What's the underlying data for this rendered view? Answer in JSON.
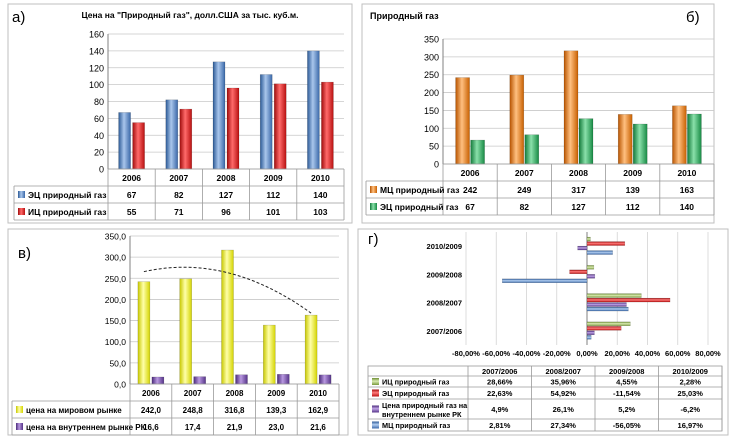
{
  "colors": {
    "blue": "#4f81bd",
    "red": "#e01818",
    "orange": "#f07c10",
    "green": "#2cb05c",
    "yellow": "#f2f21a",
    "purple": "#7a4fb0",
    "light_green": "#9bbb59",
    "dark_blue": "#4f7fc0"
  },
  "chart_data": [
    {
      "id": "a",
      "panel_label": "а)",
      "type": "bar",
      "title": "Цена на \"Природный газ\", долл.США за тыс. куб.м.",
      "categories": [
        "2006",
        "2007",
        "2008",
        "2009",
        "2010"
      ],
      "series": [
        {
          "name": "ЭЦ природный газ",
          "values": [
            67,
            82,
            127,
            112,
            140
          ],
          "labels": [
            "67",
            "82",
            "127",
            "112",
            "140"
          ],
          "color": "#4f81bd"
        },
        {
          "name": "ИЦ природный газ",
          "values": [
            55,
            71,
            96,
            101,
            103
          ],
          "labels": [
            "55",
            "71",
            "96",
            "101",
            "103"
          ],
          "color": "#e01818"
        }
      ],
      "ylim": [
        0,
        160
      ],
      "yticks": [
        "0",
        "20",
        "40",
        "60",
        "80",
        "100",
        "120",
        "140",
        "160"
      ],
      "grid": true,
      "legend": "data-table"
    },
    {
      "id": "b",
      "panel_label": "б)",
      "type": "bar",
      "title": "Природный газ",
      "categories": [
        "2006",
        "2007",
        "2008",
        "2009",
        "2010"
      ],
      "series": [
        {
          "name": "МЦ природный газ",
          "values": [
            242,
            249,
            317,
            139,
            163
          ],
          "labels": [
            "242",
            "249",
            "317",
            "139",
            "163"
          ],
          "color": "#f07c10"
        },
        {
          "name": "ЭЦ природный газ",
          "values": [
            67,
            82,
            127,
            112,
            140
          ],
          "labels": [
            "67",
            "82",
            "127",
            "112",
            "140"
          ],
          "color": "#2cb05c"
        }
      ],
      "ylim": [
        0,
        350
      ],
      "yticks": [
        "0",
        "50",
        "100",
        "150",
        "200",
        "250",
        "300",
        "350"
      ],
      "grid": true,
      "legend": "data-table"
    },
    {
      "id": "v",
      "panel_label": "в)",
      "type": "bar",
      "title": "",
      "categories": [
        "2006",
        "2007",
        "2008",
        "2009",
        "2010"
      ],
      "series": [
        {
          "name": "цена на мировом рынке",
          "values": [
            242.0,
            248.8,
            316.8,
            139.3,
            162.9
          ],
          "labels": [
            "242,0",
            "248,8",
            "316,8",
            "139,3",
            "162,9"
          ],
          "color": "#f2f21a"
        },
        {
          "name": "цена на внутреннем рынке РК",
          "values": [
            16.6,
            17.4,
            21.9,
            23.0,
            21.6
          ],
          "labels": [
            "16,6",
            "17,4",
            "21,9",
            "23,0",
            "21,6"
          ],
          "color": "#7a4fb0"
        }
      ],
      "ylim": [
        0,
        350
      ],
      "yticks": [
        "0,0",
        "50,0",
        "100,0",
        "150,0",
        "200,0",
        "250,0",
        "300,0",
        "350,0"
      ],
      "grid": true,
      "trendline": "dashed curve",
      "legend": "data-table"
    },
    {
      "id": "g",
      "panel_label": "г)",
      "type": "bar",
      "orientation": "horizontal",
      "title": "",
      "categories": [
        "2007/2006",
        "2008/2007",
        "2009/2008",
        "2010/2009"
      ],
      "series": [
        {
          "name": "ИЦ природный газ",
          "values": [
            28.66,
            35.96,
            4.55,
            2.28
          ],
          "labels": [
            "28,66%",
            "35,96%",
            "4,55%",
            "2,28%"
          ],
          "color": "#9bbb59"
        },
        {
          "name": "ЭЦ природный газ",
          "values": [
            22.63,
            54.92,
            -11.54,
            25.03
          ],
          "labels": [
            "22,63%",
            "54,92%",
            "-11,54%",
            "25,03%"
          ],
          "color": "#e01818"
        },
        {
          "name": "Цена природный газ на внутреннем рынке РК",
          "values": [
            4.9,
            26.1,
            5.2,
            -6.2
          ],
          "labels": [
            "4,9%",
            "26,1%",
            "5,2%",
            "-6,2%"
          ],
          "color": "#7a4fb0"
        },
        {
          "name": "МЦ природный газ",
          "values": [
            2.81,
            27.34,
            -56.05,
            16.97
          ],
          "labels": [
            "2,81%",
            "27,34%",
            "-56,05%",
            "16,97%"
          ],
          "color": "#4f7fc0"
        }
      ],
      "xlim": [
        -80,
        80
      ],
      "xticks": [
        "-80,00%",
        "-60,00%",
        "-40,00%",
        "-20,00%",
        "0,00%",
        "20,00%",
        "40,00%",
        "60,00%",
        "80,00%"
      ],
      "grid": true,
      "legend": "data-table"
    }
  ]
}
